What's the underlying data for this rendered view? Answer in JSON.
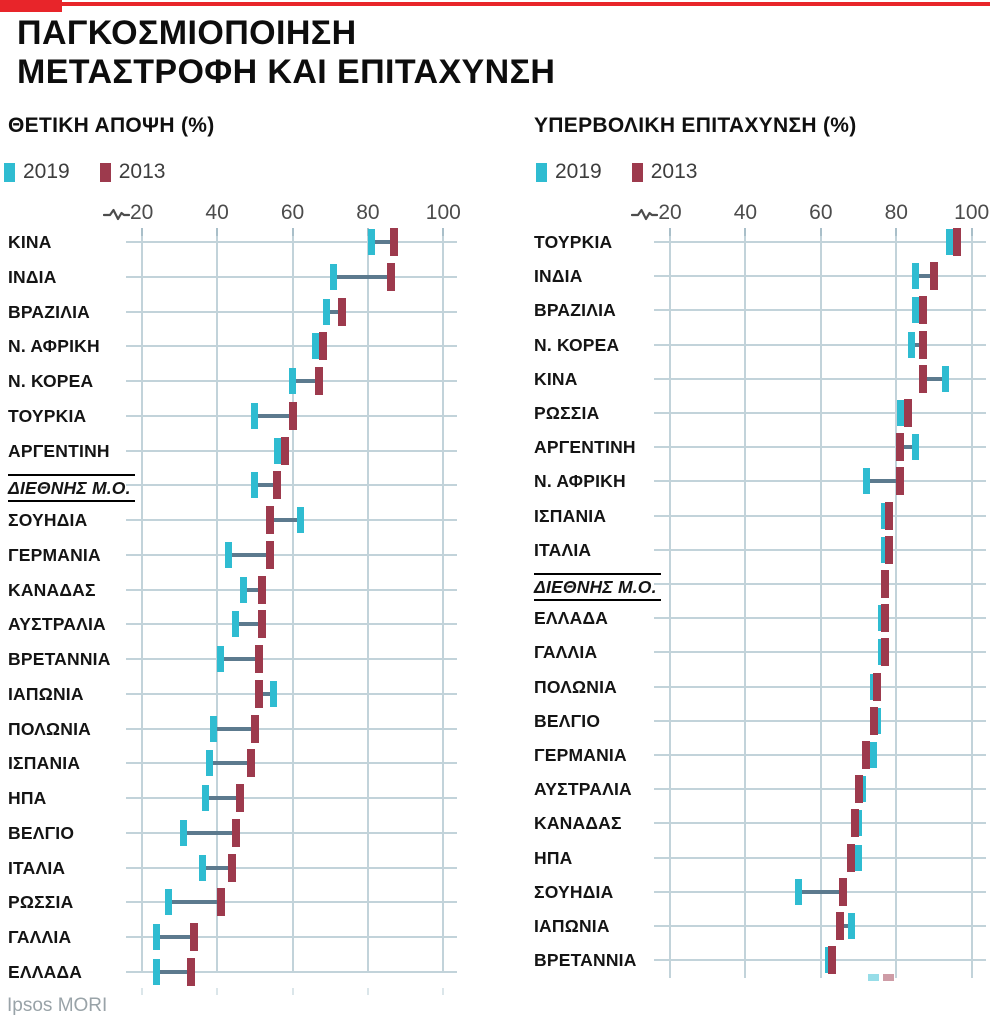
{
  "header": {
    "title_line1": "ΠΑΓΚΟΣΜΙΟΠΟΙΗΣΗ",
    "title_line2": "ΜΕΤΑΣΤΡΟΦΗ ΚΑΙ ΕΠΙΤΑΧΥΝΣΗ"
  },
  "source": "Ipsos MORI",
  "colors": {
    "accent_red": "#e8252a",
    "series_2019_cyan": "#2fbcd1",
    "series_2013_maroon": "#9d3a4d",
    "connector": "#5c7a8e",
    "gridline": "#c2d3da",
    "axis_text": "#4c4c4c"
  },
  "chart_data": [
    {
      "type": "dumbbell",
      "title": "ΘΕΤΙΚΗ ΑΠΟΨΗ (%)",
      "series": [
        {
          "name": "2019"
        },
        {
          "name": "2013"
        }
      ],
      "xticks": [
        20,
        40,
        60,
        80,
        100
      ],
      "xlim": [
        20,
        100
      ],
      "axis_break": true,
      "grid": true,
      "legend_position": "top-left",
      "rows": [
        {
          "label": "ΚΙΝΑ",
          "v2019": 81,
          "v2013": 87
        },
        {
          "label": "ΙΝΔΙΑ",
          "v2019": 71,
          "v2013": 86
        },
        {
          "label": "ΒΡΑΖΙΛΙΑ",
          "v2019": 69,
          "v2013": 73
        },
        {
          "label": "Ν. ΑΦΡΙΚΗ",
          "v2019": 66,
          "v2013": 68
        },
        {
          "label": "Ν. ΚΟΡΕΑ",
          "v2019": 60,
          "v2013": 67
        },
        {
          "label": "ΤΟΥΡΚΙΑ",
          "v2019": 50,
          "v2013": 60
        },
        {
          "label": "ΑΡΓΕΝΤΙΝΗ",
          "v2019": 56,
          "v2013": 58
        },
        {
          "label": "ΔΙΕΘΝΗΣ Μ.Ο.",
          "v2019": 50,
          "v2013": 56,
          "average": true
        },
        {
          "label": "ΣΟΥΗΔΙΑ",
          "v2019": 62,
          "v2013": 54
        },
        {
          "label": "ΓΕΡΜΑΝΙΑ",
          "v2019": 43,
          "v2013": 54
        },
        {
          "label": "ΚΑΝΑΔΑΣ",
          "v2019": 47,
          "v2013": 52
        },
        {
          "label": "ΑΥΣΤΡΑΛΙΑ",
          "v2019": 45,
          "v2013": 52
        },
        {
          "label": "ΒΡΕΤΑΝΝΙΑ",
          "v2019": 41,
          "v2013": 51
        },
        {
          "label": "ΙΑΠΩΝΙΑ",
          "v2019": 55,
          "v2013": 51
        },
        {
          "label": "ΠΟΛΩΝΙΑ",
          "v2019": 39,
          "v2013": 50
        },
        {
          "label": "ΙΣΠΑΝΙΑ",
          "v2019": 38,
          "v2013": 49
        },
        {
          "label": "ΗΠΑ",
          "v2019": 37,
          "v2013": 46
        },
        {
          "label": "ΒΕΛΓΙΟ",
          "v2019": 31,
          "v2013": 45
        },
        {
          "label": "ΙΤΑΛΙΑ",
          "v2019": 36,
          "v2013": 44
        },
        {
          "label": "ΡΩΣΣΙΑ",
          "v2019": 27,
          "v2013": 41
        },
        {
          "label": "ΓΑΛΛΙΑ",
          "v2019": 24,
          "v2013": 34
        },
        {
          "label": "ΕΛΛΑΔΑ",
          "v2019": 24,
          "v2013": 33
        }
      ]
    },
    {
      "type": "dumbbell",
      "title": "ΥΠΕΡΒΟΛΙΚΗ ΕΠΙΤΑΧΥΝΣΗ (%)",
      "series": [
        {
          "name": "2019"
        },
        {
          "name": "2013"
        }
      ],
      "xticks": [
        20,
        40,
        60,
        80,
        100
      ],
      "xlim": [
        20,
        100
      ],
      "axis_break": true,
      "grid": true,
      "legend_position": "top-left",
      "rows": [
        {
          "label": "ΤΟΥΡΚΙΑ",
          "v2019": 94,
          "v2013": 96
        },
        {
          "label": "ΙΝΔΙΑ",
          "v2019": 85,
          "v2013": 90
        },
        {
          "label": "ΒΡΑΖΙΛΙΑ",
          "v2019": 85,
          "v2013": 87
        },
        {
          "label": "Ν. ΚΟΡΕΑ",
          "v2019": 84,
          "v2013": 87
        },
        {
          "label": "ΚΙΝΑ",
          "v2019": 93,
          "v2013": 87
        },
        {
          "label": "ΡΩΣΣΙΑ",
          "v2019": 81,
          "v2013": 83
        },
        {
          "label": "ΑΡΓΕΝΤΙΝΗ",
          "v2019": 85,
          "v2013": 81
        },
        {
          "label": "Ν. ΑΦΡΙΚΗ",
          "v2019": 72,
          "v2013": 81
        },
        {
          "label": "ΙΣΠΑΝΙΑ",
          "v2019": 77,
          "v2013": 78
        },
        {
          "label": "ΙΤΑΛΙΑ",
          "v2019": 77,
          "v2013": 78
        },
        {
          "label": "ΔΙΕΘΝΗΣ Μ.Ο.",
          "v2019": 77,
          "v2013": 77,
          "average": true
        },
        {
          "label": "ΕΛΛΑΔΑ",
          "v2019": 76,
          "v2013": 77
        },
        {
          "label": "ΓΑΛΛΙΑ",
          "v2019": 76,
          "v2013": 77
        },
        {
          "label": "ΠΟΛΩΝΙΑ",
          "v2019": 74,
          "v2013": 75
        },
        {
          "label": "ΒΕΛΓΙΟ",
          "v2019": 75,
          "v2013": 74
        },
        {
          "label": "ΓΕΡΜΑΝΙΑ",
          "v2019": 74,
          "v2013": 72
        },
        {
          "label": "ΑΥΣΤΡΑΛΙΑ",
          "v2019": 71,
          "v2013": 70
        },
        {
          "label": "ΚΑΝΑΔΑΣ",
          "v2019": 70,
          "v2013": 69
        },
        {
          "label": "ΗΠΑ",
          "v2019": 70,
          "v2013": 68
        },
        {
          "label": "ΣΟΥΗΔΙΑ",
          "v2019": 54,
          "v2013": 66
        },
        {
          "label": "ΙΑΠΩΝΙΑ",
          "v2019": 68,
          "v2013": 65
        },
        {
          "label": "ΒΡΕΤΑΝΝΙΑ",
          "v2019": 62,
          "v2013": 63
        }
      ],
      "cutoff_row": {
        "v2019": 74,
        "v2013": 78,
        "note": "partially visible row cut off at image bottom"
      }
    }
  ]
}
